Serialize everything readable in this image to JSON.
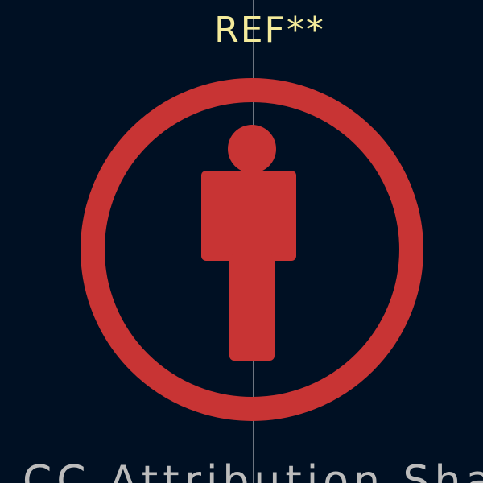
{
  "editor": {
    "reference_label": "REF**",
    "license_text": "CC Attribution Share",
    "colors": {
      "background": "#001023",
      "reference": "#f4eb9b",
      "symbol": "#c83434",
      "license": "#bcbcbc",
      "crosshair": "#7f8791"
    }
  }
}
